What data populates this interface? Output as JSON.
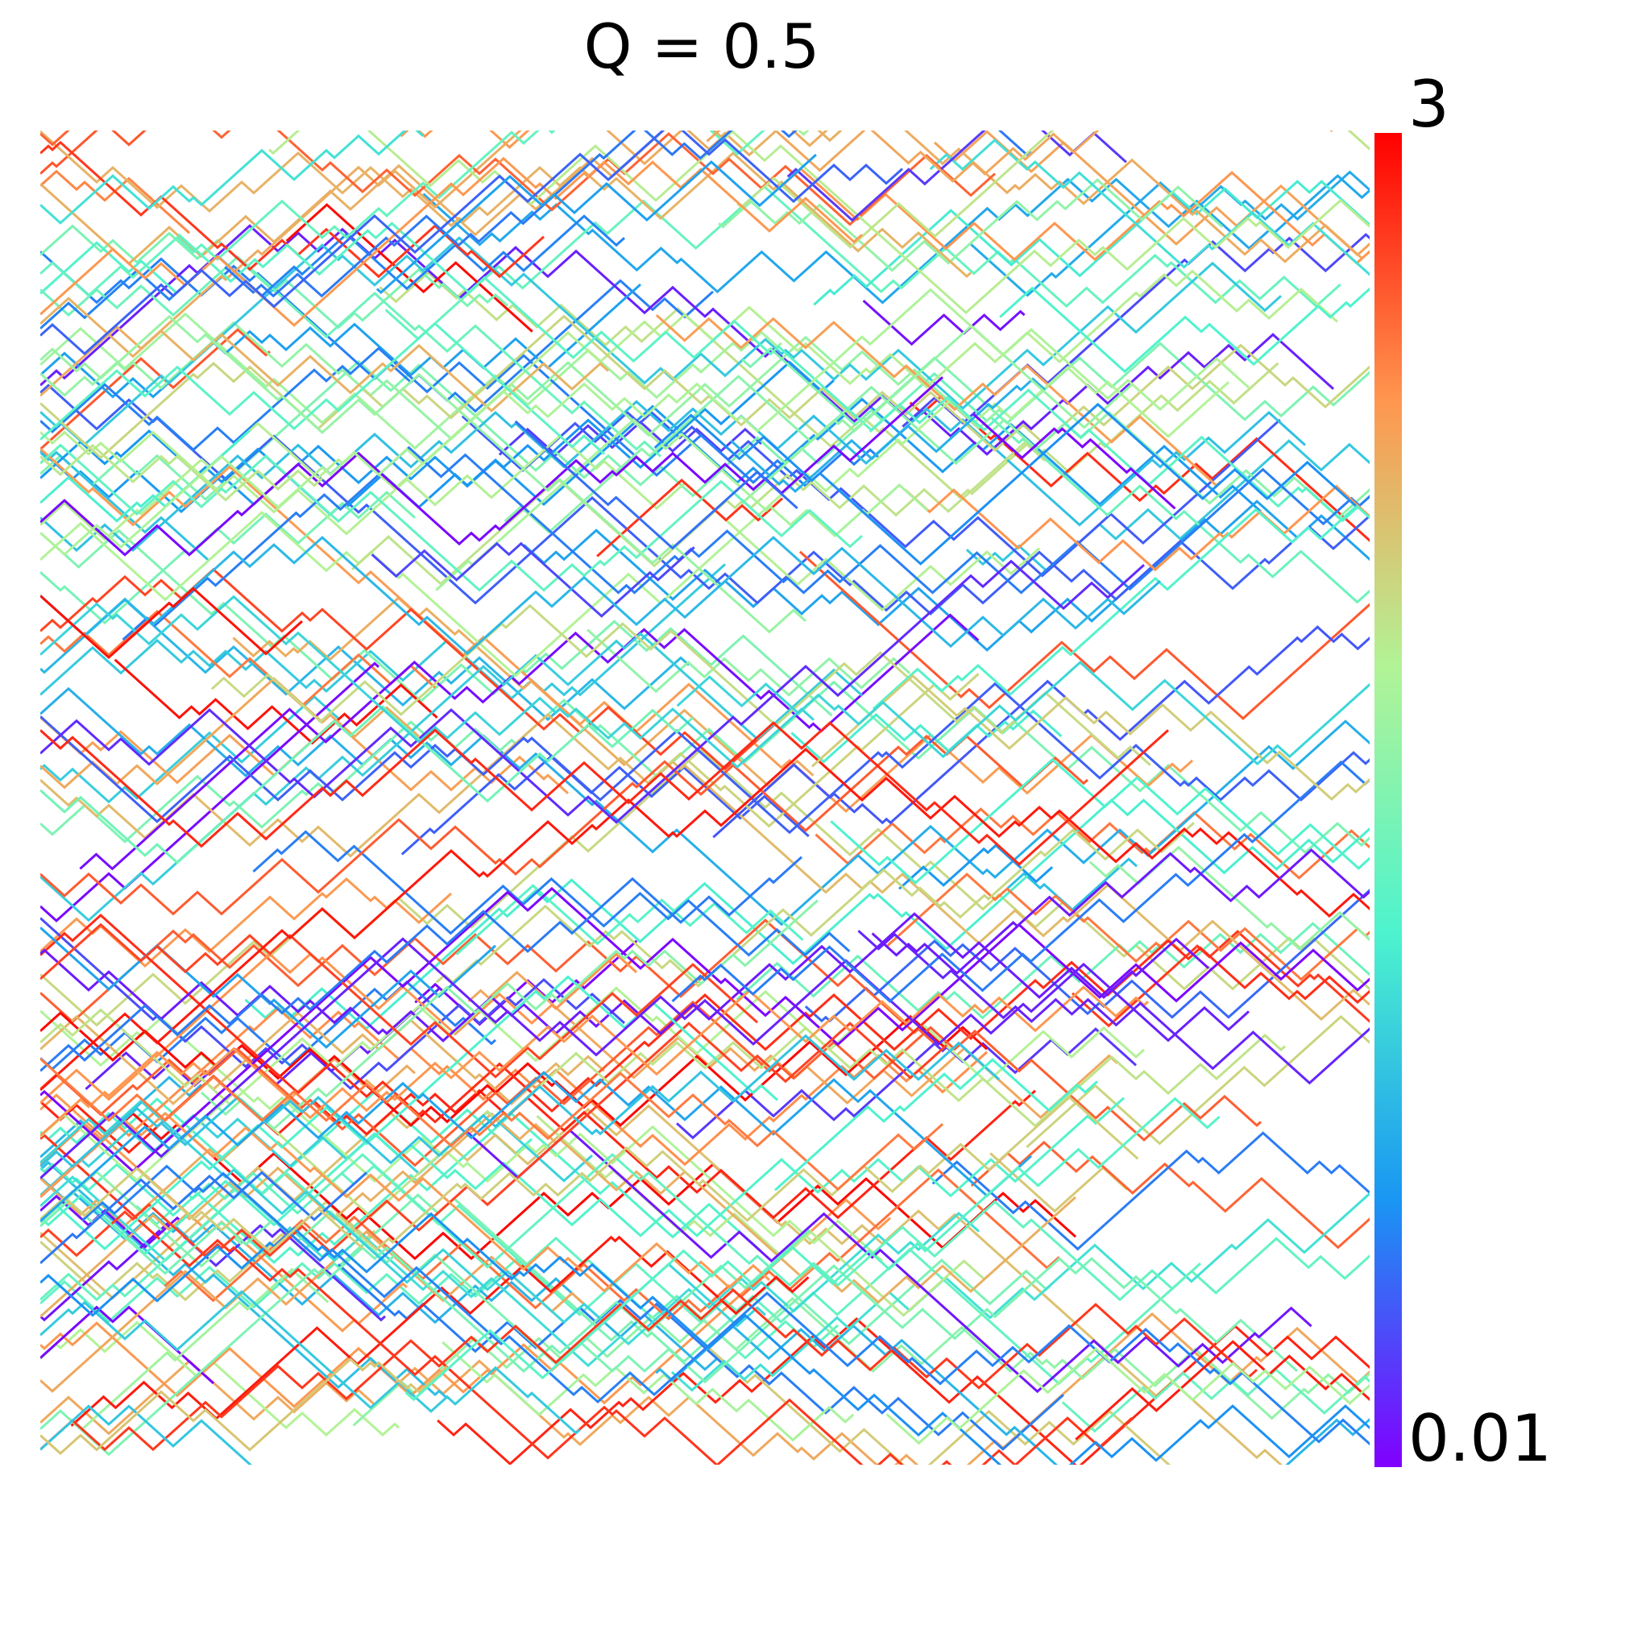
{
  "chart_data": {
    "type": "trajectory",
    "title": "Q = 0.5",
    "clim": [
      0.01,
      3
    ],
    "cticks": [
      0.01,
      3
    ],
    "colormap": [
      "#8000ff",
      "#1996f3",
      "#4df3ce",
      "#b2f396",
      "#ff964f",
      "#ff0000"
    ]
  }
}
